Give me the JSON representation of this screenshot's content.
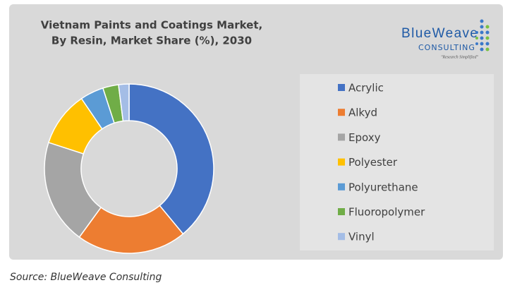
{
  "chart_data": {
    "type": "donut",
    "title": [
      "Vietnam Paints and Coatings Market,",
      "By Resin, Market Share (%), 2030"
    ],
    "logo": {
      "name": "BlueWeave",
      "sub": "CONSULTING",
      "tagline": "\"Research Simplified\""
    },
    "categories": [
      "Acrylic",
      "Alkyd",
      "Epoxy",
      "Polyester",
      "Polyurethane",
      "Fluoropolymer",
      "Vinyl"
    ],
    "values": [
      39,
      21,
      20,
      10.5,
      4.5,
      3,
      2
    ],
    "colors": [
      "#4472c4",
      "#ed7d31",
      "#a5a5a5",
      "#ffc000",
      "#5b9bd5",
      "#70ad47",
      "#a4bde6"
    ],
    "legend": "right",
    "source": "Source: BlueWeave Consulting"
  }
}
